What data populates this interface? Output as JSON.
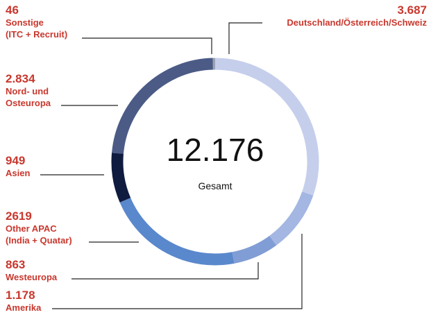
{
  "chart_data": {
    "type": "donut",
    "center_label": "12.176",
    "center_text": "Gesamt",
    "categories": [
      "Deutschland/Österreich/Schweiz",
      "Amerika",
      "Westeuropa",
      "Other APAC\n(India + Quatar)",
      "Asien",
      "Nord- und\nOsteuropa",
      "Sonstige\n(ITC + Recruit)"
    ],
    "values": [
      3687,
      1178,
      863,
      2619,
      949,
      2834,
      46
    ],
    "value_labels": [
      "3.687",
      "1.178",
      "863",
      "2619",
      "949",
      "2.834",
      "46"
    ],
    "colors": [
      "#c5cfec",
      "#a4b6e2",
      "#819dd5",
      "#5a88cc",
      "#0f1b3f",
      "#4b5b86",
      "#9ca2b3"
    ]
  }
}
